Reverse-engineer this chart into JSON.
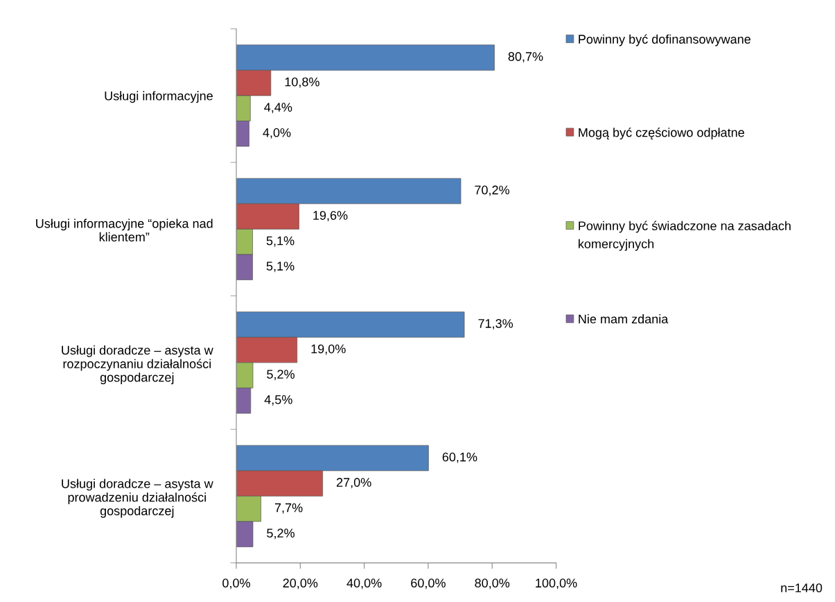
{
  "chart_data": {
    "type": "bar",
    "orientation": "horizontal",
    "categories": [
      "Usługi informacyjne",
      "Usługi informacyjne “opieka nad klientem”",
      "Usługi doradcze – asysta w rozpoczynaniu działalności gospodarczej",
      "Usługi doradcze – asysta w prowadzeniu działalności gospodarczej"
    ],
    "series": [
      {
        "name": "Powinny być dofinansowywane",
        "color": "#4f81bd",
        "values": [
          80.7,
          70.2,
          71.3,
          60.1
        ],
        "value_labels": [
          "80,7%",
          "70,2%",
          "71,3%",
          "60,1%"
        ]
      },
      {
        "name": "Mogą być częściowo odpłatne",
        "color": "#c0504d",
        "values": [
          10.8,
          19.6,
          19.0,
          27.0
        ],
        "value_labels": [
          "10,8%",
          "19,6%",
          "19,0%",
          "27,0%"
        ]
      },
      {
        "name": "Powinny być świadczone na zasadach komercyjnych",
        "color": "#9bbb59",
        "values": [
          4.4,
          5.1,
          5.2,
          7.7
        ],
        "value_labels": [
          "4,4%",
          "5,1%",
          "5,2%",
          "7,7%"
        ]
      },
      {
        "name": "Nie mam zdania",
        "color": "#8064a2",
        "values": [
          4.0,
          5.1,
          4.5,
          5.2
        ],
        "value_labels": [
          "4,0%",
          "5,1%",
          "4,5%",
          "5,2%"
        ]
      }
    ],
    "xlim": [
      0,
      100
    ],
    "xticks": [
      {
        "value": 0,
        "label": "0,0%"
      },
      {
        "value": 20,
        "label": "20,0%"
      },
      {
        "value": 40,
        "label": "40,0%"
      },
      {
        "value": 60,
        "label": "60,0%"
      },
      {
        "value": 80,
        "label": "80,0%"
      },
      {
        "value": 100,
        "label": "100,0%"
      }
    ],
    "grid": false,
    "legend": "right",
    "annotations": [
      "n=1440"
    ]
  }
}
